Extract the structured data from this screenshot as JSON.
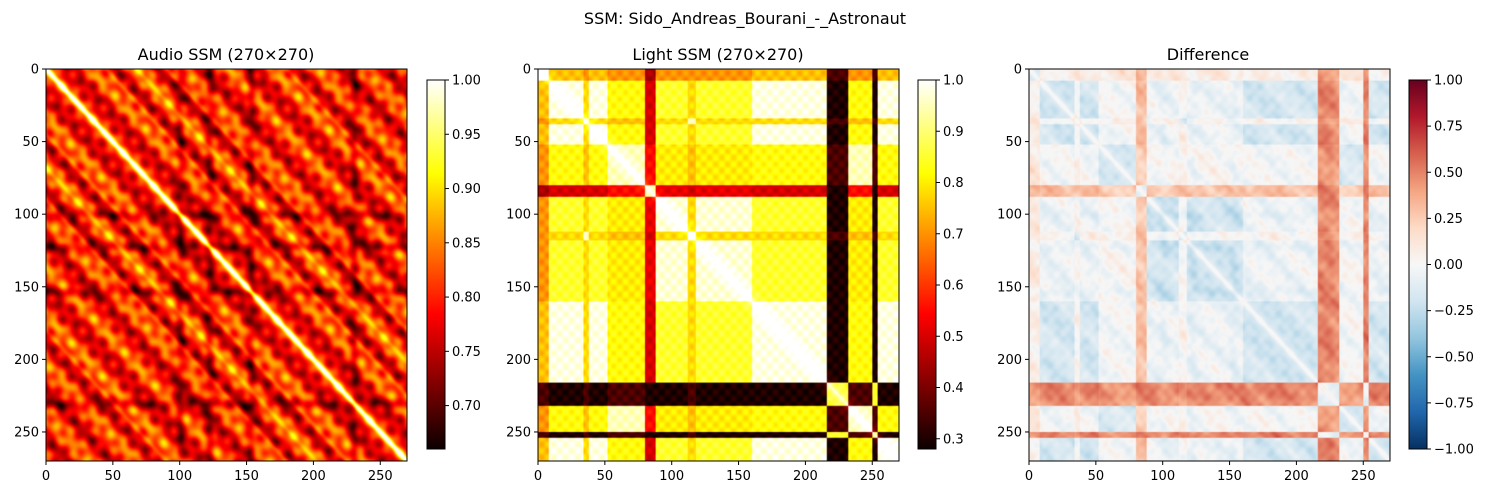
{
  "suptitle": "SSM: Sido_Andreas_Bourani_-_Astronaut",
  "chart_data": [
    {
      "type": "heatmap",
      "title": "Audio SSM (270×270)",
      "colormap": "hot",
      "shape": [
        270,
        270
      ],
      "xlim": [
        0,
        270
      ],
      "ylim": [
        270,
        0
      ],
      "xticks": [
        0,
        50,
        100,
        150,
        200,
        250
      ],
      "yticks": [
        0,
        50,
        100,
        150,
        200,
        250
      ],
      "colorbar": {
        "vmin": 0.66,
        "vmax": 1.0,
        "ticks": [
          "0.70",
          "0.75",
          "0.80",
          "0.85",
          "0.90",
          "0.95",
          "1.00"
        ],
        "tick_values": [
          0.7,
          0.75,
          0.8,
          0.85,
          0.9,
          0.95,
          1.0
        ]
      }
    },
    {
      "type": "heatmap",
      "title": "Light SSM (270×270)",
      "colormap": "hot",
      "shape": [
        270,
        270
      ],
      "xlim": [
        0,
        270
      ],
      "ylim": [
        270,
        0
      ],
      "xticks": [
        0,
        50,
        100,
        150,
        200,
        250
      ],
      "yticks": [
        0,
        50,
        100,
        150,
        200,
        250
      ],
      "colorbar": {
        "vmin": 0.28,
        "vmax": 1.0,
        "ticks": [
          "0.3",
          "0.4",
          "0.5",
          "0.6",
          "0.7",
          "0.8",
          "0.9",
          "1.0"
        ],
        "tick_values": [
          0.3,
          0.4,
          0.5,
          0.6,
          0.7,
          0.8,
          0.9,
          1.0
        ]
      }
    },
    {
      "type": "heatmap",
      "title": "Difference",
      "colormap": "RdBu_r",
      "shape": [
        270,
        270
      ],
      "xlim": [
        0,
        270
      ],
      "ylim": [
        270,
        0
      ],
      "xticks": [
        0,
        50,
        100,
        150,
        200,
        250
      ],
      "yticks": [
        0,
        50,
        100,
        150,
        200,
        250
      ],
      "colorbar": {
        "vmin": -1.0,
        "vmax": 1.0,
        "ticks": [
          "−1.00",
          "−0.75",
          "−0.50",
          "−0.25",
          "0.00",
          "0.25",
          "0.50",
          "0.75",
          "1.00"
        ],
        "tick_values": [
          -1.0,
          -0.75,
          -0.5,
          -0.25,
          0.0,
          0.25,
          0.5,
          0.75,
          1.0
        ]
      }
    }
  ]
}
